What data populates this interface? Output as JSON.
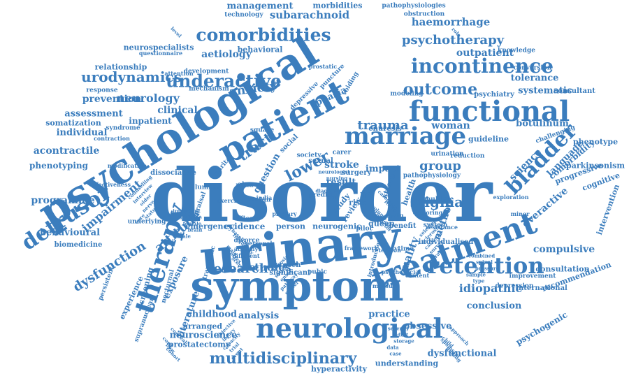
{
  "colors": {
    "word": "#3b7dbd",
    "background": "#ffffff"
  },
  "words": [
    "disorder",
    "psychological",
    "urinary",
    "symptom",
    "neurological",
    "patient",
    "functional",
    "treatment",
    "marriage",
    "bladder",
    "incontinence",
    "retention",
    "therapy",
    "comorbidities",
    "underactive",
    "urodynamics",
    "outcome",
    "detrusor",
    "multidisciplinary",
    "research",
    "attitude",
    "impairment",
    "psychotherapy",
    "haemorrhage",
    "subarachnoid",
    "management",
    "morbidities",
    "aetiology",
    "anxiety",
    "neurology",
    "clinical",
    "prevention",
    "relationship",
    "assessment",
    "individual",
    "acontractile",
    "phenotyping",
    "programme",
    "behavioural",
    "biomedicine",
    "dysfunction",
    "screening",
    "exposure",
    "experience",
    "childhood",
    "analysis",
    "neuroscience",
    "prostatectomy",
    "hyperactivity",
    "understanding",
    "dysfunctional",
    "conclusion",
    "practice",
    "obsessive",
    "idiopathic",
    "stigma",
    "group",
    "lower",
    "tract",
    "trauma",
    "woman",
    "botulinum",
    "science",
    "language",
    "comorbidity",
    "overactive",
    "compulsive",
    "consultation",
    "recommendation",
    "psychogenic",
    "tolerance",
    "systematic",
    "outpatient",
    "knowledge",
    "pathophysiologies",
    "obstruction",
    "technology",
    "aphasia",
    "stroke",
    "inpatient",
    "somatization",
    "literature",
    "studies",
    "quality",
    "method",
    "impact",
    "result",
    "question",
    "emergency",
    "evidence",
    "person",
    "stress",
    "life",
    "risk",
    "review",
    "study",
    "health",
    "queen",
    "benefit",
    "system",
    "urination",
    "reduction",
    "guideline",
    "enuresis",
    "modeling",
    "psychiatry",
    "consultant",
    "parkinsonism",
    "phenotype",
    "progressive",
    "cognitive",
    "intervention",
    "international",
    "improvement",
    "depression",
    "individualised",
    "daytime",
    "neurogenic",
    "rasch",
    "significant",
    "arranged",
    "underlying",
    "nocturnal",
    "persistent",
    "supranuclear",
    "dissociative",
    "syndrome",
    "contraction",
    "modification",
    "effectiveness",
    "development",
    "mechanism",
    "attention",
    "questionnaire",
    "neurospecialists",
    "behavioral",
    "response",
    "depressive",
    "voiding",
    "puncture",
    "prostatic",
    "challenging",
    "conversion",
    "pathophysiology",
    "multiple",
    "surgery",
    "predict",
    "toxin",
    "pilot",
    "carer",
    "sexual",
    "social",
    "square",
    "society",
    "meta",
    "abuse",
    "divorce",
    "atrophy",
    "different",
    "personal",
    "primary",
    "traumatic",
    "lumbar",
    "exercise",
    "efficacy",
    "appraisal",
    "marital",
    "benign",
    "india",
    "measure",
    "introduction",
    "pubic",
    "framework",
    "minor",
    "psychosocial",
    "content",
    "resistance",
    "exploration",
    "exploring",
    "retention",
    "counselling",
    "important",
    "baseline",
    "fibrosis",
    "neurologist",
    "caregiver",
    "selected",
    "combined",
    "conceal",
    "objective",
    "severity",
    "approach",
    "interview",
    "medicine",
    "frequency",
    "urgency",
    "nursing",
    "reflex",
    "sclerosis",
    "spinal",
    "cord",
    "injury",
    "adult",
    "child",
    "older",
    "female",
    "male",
    "onset",
    "sensation",
    "volume",
    "catheter",
    "pressure",
    "flow",
    "capacity",
    "storage",
    "sphincter",
    "nerve",
    "brain",
    "cortex",
    "pathway",
    "diagnosis",
    "prognosis",
    "survey",
    "sample",
    "cohort",
    "trial",
    "data",
    "finding",
    "status",
    "scale",
    "score",
    "model",
    "test",
    "factor",
    "rate",
    "type",
    "level",
    "event",
    "case",
    "role",
    "care"
  ]
}
